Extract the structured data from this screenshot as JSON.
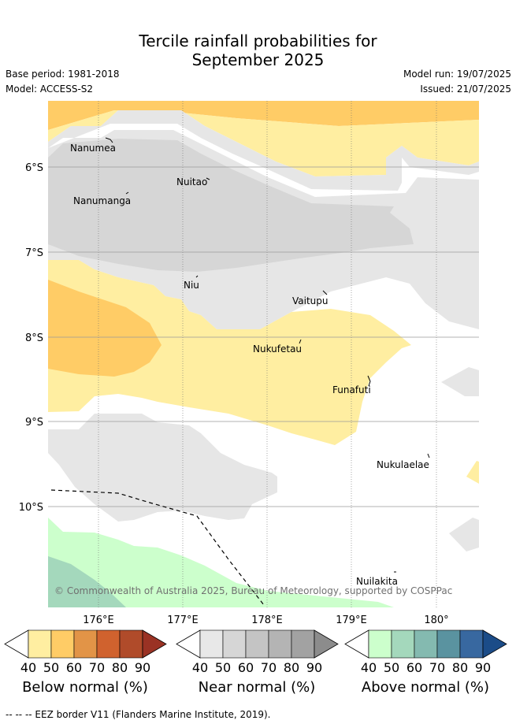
{
  "title_line1": "Tercile rainfall probabilities for",
  "title_line2": "September 2025",
  "base_period": "Base period: 1981-2018",
  "model": "Model: ACCESS-S2",
  "model_run": "Model run: 19/07/2025",
  "issued": "Issued: 21/07/2025",
  "places": [
    "Nanumea",
    "Nuitao",
    "Nanumanga",
    "Niu",
    "Vaitupu",
    "Nukufetau",
    "Funafuti",
    "Nukulaelae",
    "Nuilakita"
  ],
  "lat_ticks": [
    "6°S",
    "7°S",
    "8°S",
    "9°S",
    "10°S"
  ],
  "lon_ticks": [
    "176°E",
    "177°E",
    "178°E",
    "179°E",
    "180°"
  ],
  "copyright": "© Commonwealth of Australia 2025, Bureau of Meteorology, supported by COSPPac",
  "colorbars": [
    {
      "label": "Below normal (%)",
      "ticks": [
        "40",
        "50",
        "60",
        "70",
        "80",
        "90"
      ],
      "colors": [
        "#ffeea1",
        "#ffcc66",
        "#e29447",
        "#d0622e",
        "#b04b2a",
        "#9a3224"
      ]
    },
    {
      "label": "Near normal (%)",
      "ticks": [
        "40",
        "50",
        "60",
        "70",
        "80",
        "90"
      ],
      "colors": [
        "#e8e8e8",
        "#d6d6d6",
        "#c4c4c4",
        "#b4b4b4",
        "#a2a2a2",
        "#8c8c8c"
      ]
    },
    {
      "label": "Above normal (%)",
      "ticks": [
        "40",
        "50",
        "60",
        "70",
        "80",
        "90"
      ],
      "colors": [
        "#ccffcc",
        "#a4d8bc",
        "#84bab0",
        "#5a93a0",
        "#3868a0",
        "#1b4c88"
      ]
    }
  ],
  "footer": "--  --  -- EEZ border V11 (Flanders Marine Institute, 2019)."
}
